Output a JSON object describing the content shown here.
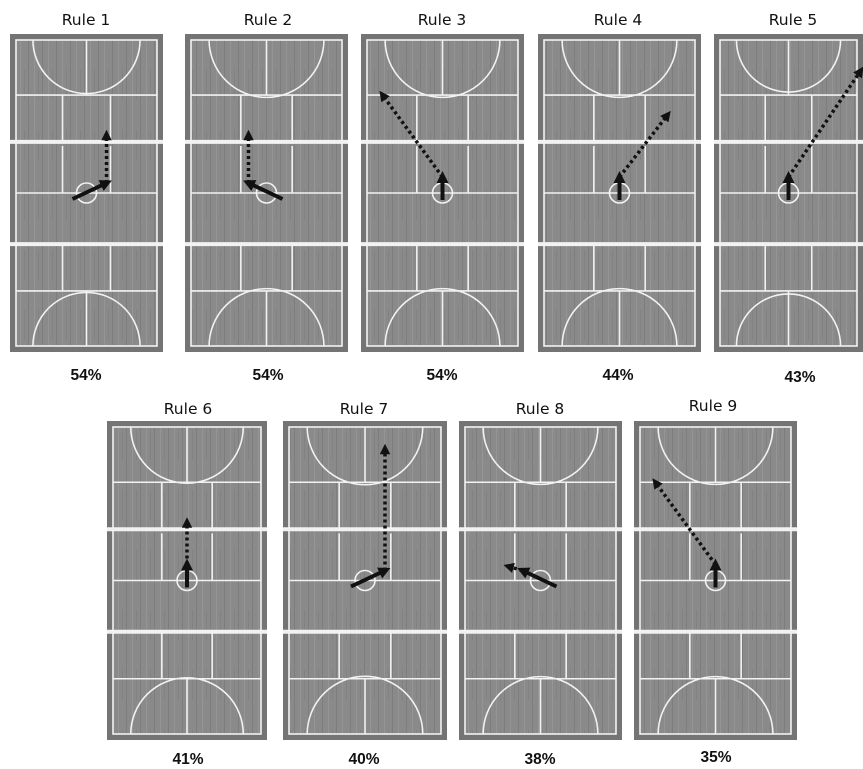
{
  "colors": {
    "court_surface": "#8a8a8a",
    "court_border": "#747474",
    "court_lines": "#f2f2f2",
    "arrow": "#111111",
    "text": "#111111"
  },
  "rules": [
    {
      "title": "Rule 1",
      "percent": "54%",
      "solid_path": "diagonal-right",
      "dotted_path": "up"
    },
    {
      "title": "Rule 2",
      "percent": "54%",
      "solid_path": "diagonal-left",
      "dotted_path": "up"
    },
    {
      "title": "Rule 3",
      "percent": "54%",
      "solid_path": "short-up",
      "dotted_path": "diagonal-up-left"
    },
    {
      "title": "Rule 4",
      "percent": "44%",
      "solid_path": "short-up",
      "dotted_path": "diagonal-up-right"
    },
    {
      "title": "Rule 5",
      "percent": "43%",
      "solid_path": "short-up",
      "dotted_path": "long-diagonal-up-right"
    },
    {
      "title": "Rule 6",
      "percent": "41%",
      "solid_path": "short-up",
      "dotted_path": "up"
    },
    {
      "title": "Rule 7",
      "percent": "40%",
      "solid_path": "diagonal-right",
      "dotted_path": "long-up"
    },
    {
      "title": "Rule 8",
      "percent": "38%",
      "solid_path": "diagonal-left",
      "dotted_path": "short-up-left"
    },
    {
      "title": "Rule 9",
      "percent": "35%",
      "solid_path": "short-up",
      "dotted_path": "diagonal-up-left"
    }
  ]
}
